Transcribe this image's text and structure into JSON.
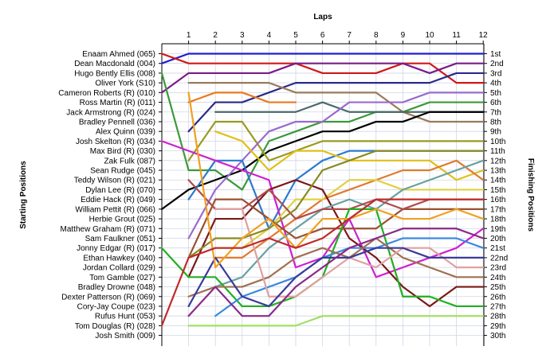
{
  "chart_data": {
    "type": "line",
    "title": "Laps",
    "xlabel": "Laps",
    "ylabel_left": "Starting Positions",
    "ylabel_right": "Finishing Positions",
    "x": [
      0,
      1,
      2,
      3,
      4,
      5,
      6,
      7,
      8,
      9,
      10,
      11,
      12
    ],
    "x_tick_labels": [
      "1",
      "2",
      "3",
      "4",
      "5",
      "6",
      "7",
      "8",
      "9",
      "10",
      "11",
      "12"
    ],
    "y_range": [
      1,
      30
    ],
    "grid": true,
    "starting_positions": [
      "Enaam Ahmed (065)",
      "Dean Macdonald (004)",
      "Hugo Bently Ellis (008)",
      "Oliver York (S10)",
      "Cameron Roberts (R) (010)",
      "Ross Martin (R) (011)",
      "Jack Armstrong (R) (024)",
      "Bradley Pennell (036)",
      "Alex Quinn (039)",
      "Josh Skelton (R) (034)",
      "Max Bird    (R) (030)",
      "Zak Fulk (087)",
      "Sean Rudge (045)",
      "Teddy Wilson (R) (021)",
      "Dylan Lee (R) (070)",
      "Eddie Hack (R) (049)",
      "William Pettit (R) (066)",
      "Herbie Grout (025)",
      "Matthew Graham (R) (071)",
      "Sam Faulkner (051)",
      "Jonny Edgar (R) (017)",
      "Ethan Hawkey (040)",
      "Jordan Collard (029)",
      "Tom Gamble (027)",
      "Bradley Drowne (048)",
      "Dexter Patterson (R) (069)",
      "Cory-Jay Coupe (023)",
      "Rufus Hunt (053)",
      "Tom Douglas  (R) (028)",
      "Josh Smith (009)"
    ],
    "finishing_positions": [
      "1st",
      "2nd",
      "3rd",
      "4th",
      "5th",
      "6th",
      "7th",
      "8th",
      "9th",
      "10th",
      "11th",
      "12th",
      "13th",
      "14th",
      "15th",
      "16th",
      "17th",
      "18th",
      "19th",
      "20th",
      "21st",
      "22nd",
      "23rd",
      "24th",
      "25th",
      "26th",
      "27th",
      "28th",
      "29th",
      "30th"
    ],
    "series": [
      {
        "color": "#1f1fd0",
        "values": [
          2,
          1,
          1,
          1,
          1,
          1,
          1,
          1,
          1,
          1,
          1,
          1,
          1
        ]
      },
      {
        "color": "#d01818",
        "values": [
          1,
          2,
          2,
          2,
          2,
          2,
          3,
          3,
          3,
          2,
          2,
          4,
          4
        ]
      },
      {
        "color": "#7a1a8a",
        "values": [
          5,
          3,
          3,
          3,
          3,
          2,
          2,
          2,
          2,
          2,
          3,
          2,
          2
        ]
      },
      {
        "color": "#2a2a8a",
        "values": [
          null,
          9,
          6,
          6,
          5,
          4,
          4,
          4,
          4,
          4,
          4,
          3,
          3
        ]
      },
      {
        "color": "#9a7a5a",
        "values": [
          null,
          4,
          4,
          4,
          4,
          5,
          5,
          5,
          5,
          7,
          8,
          8,
          8
        ]
      },
      {
        "color": "#e87a20",
        "values": [
          null,
          6,
          5,
          5,
          6,
          6,
          null,
          null,
          null,
          null,
          null,
          null,
          null
        ]
      },
      {
        "color": "#3a9a3a",
        "values": [
          3,
          13,
          13,
          15,
          10,
          9,
          8,
          8,
          7,
          7,
          6,
          6,
          6
        ]
      },
      {
        "color": "#4a6a6a",
        "values": [
          null,
          null,
          7,
          7,
          7,
          7,
          6,
          7,
          7,
          7,
          7,
          7,
          7
        ]
      },
      {
        "color": "#000000",
        "values": [
          17,
          15,
          14,
          13,
          11,
          10,
          9,
          9,
          8,
          8,
          7,
          7,
          7
        ]
      },
      {
        "color": "#9a9a20",
        "values": [
          null,
          12,
          8,
          8,
          12,
          11,
          10,
          10,
          10,
          10,
          10,
          10,
          10
        ]
      },
      {
        "color": "#9a6ad0",
        "values": [
          null,
          20,
          15,
          12,
          9,
          8,
          8,
          6,
          6,
          6,
          5,
          5,
          5
        ]
      },
      {
        "color": "#2a7ad0",
        "values": [
          null,
          16,
          12,
          12,
          19,
          14,
          12,
          11,
          11,
          11,
          11,
          11,
          11
        ]
      },
      {
        "color": "#e0c018",
        "values": [
          null,
          null,
          9,
          10,
          13,
          11,
          11,
          12,
          12,
          12,
          12,
          14,
          13
        ]
      },
      {
        "color": "#e07a30",
        "values": [
          null,
          null,
          22,
          22,
          20,
          18,
          16,
          15,
          14,
          13,
          13,
          12,
          14
        ]
      },
      {
        "color": "#d020d0",
        "values": [
          10,
          11,
          12,
          13,
          14,
          23,
          22,
          18,
          24,
          23,
          22,
          21,
          19
        ]
      },
      {
        "color": "#e0d040",
        "values": [
          null,
          null,
          21,
          21,
          19,
          16,
          16,
          14,
          14,
          15,
          15,
          15,
          15
        ]
      },
      {
        "color": "#7a1818",
        "values": [
          null,
          24,
          18,
          18,
          15,
          14,
          15,
          20,
          22,
          25,
          27,
          25,
          25
        ]
      },
      {
        "color": "#6aa0a0",
        "values": [
          null,
          null,
          25,
          24,
          21,
          19,
          17,
          16,
          17,
          15,
          14,
          13,
          12
        ]
      },
      {
        "color": "#9a5030",
        "values": [
          null,
          22,
          16,
          16,
          18,
          20,
          19,
          19,
          19,
          17,
          17,
          17,
          17
        ]
      },
      {
        "color": "#b04a4a",
        "values": [
          null,
          14,
          17,
          17,
          15,
          18,
          17,
          17,
          16,
          17,
          16,
          16,
          16
        ]
      },
      {
        "color": "#20b020",
        "values": [
          21,
          24,
          24,
          27,
          27,
          26,
          24,
          17,
          17,
          26,
          26,
          27,
          27
        ]
      },
      {
        "color": "#3a8ae0",
        "values": [
          null,
          null,
          28,
          26,
          25,
          24,
          22,
          21,
          21,
          20,
          20,
          20,
          21
        ]
      },
      {
        "color": "#a07050",
        "values": [
          null,
          26,
          25,
          25,
          24,
          22,
          21,
          22,
          20,
          22,
          23,
          24,
          24
        ]
      },
      {
        "color": "#e0a0a0",
        "values": [
          null,
          null,
          17,
          17,
          26,
          26,
          24,
          22,
          23,
          21,
          21,
          23,
          23
        ]
      },
      {
        "color": "#8a8a20",
        "values": [
          null,
          22,
          20,
          20,
          19,
          17,
          13,
          12,
          11,
          11,
          11,
          11,
          11
        ]
      },
      {
        "color": "#3a3a9a",
        "values": [
          null,
          27,
          22,
          26,
          27,
          24,
          22,
          22,
          21,
          21,
          22,
          22,
          22
        ]
      },
      {
        "color": "#f0a020",
        "values": [
          null,
          5,
          23,
          20,
          18,
          21,
          18,
          18,
          17,
          18,
          18,
          17,
          18
        ]
      },
      {
        "color": "#a0e060",
        "values": [
          null,
          29,
          29,
          29,
          29,
          29,
          28,
          28,
          28,
          28,
          28,
          28,
          28
        ]
      },
      {
        "color": "#c02a2a",
        "values": [
          29,
          22,
          21,
          21,
          20,
          21,
          20,
          18,
          16,
          16,
          16,
          16,
          16
        ]
      },
      {
        "color": "#8a2a8a",
        "values": [
          null,
          28,
          25,
          28,
          28,
          25,
          23,
          21,
          20,
          19,
          19,
          19,
          20
        ]
      }
    ]
  }
}
